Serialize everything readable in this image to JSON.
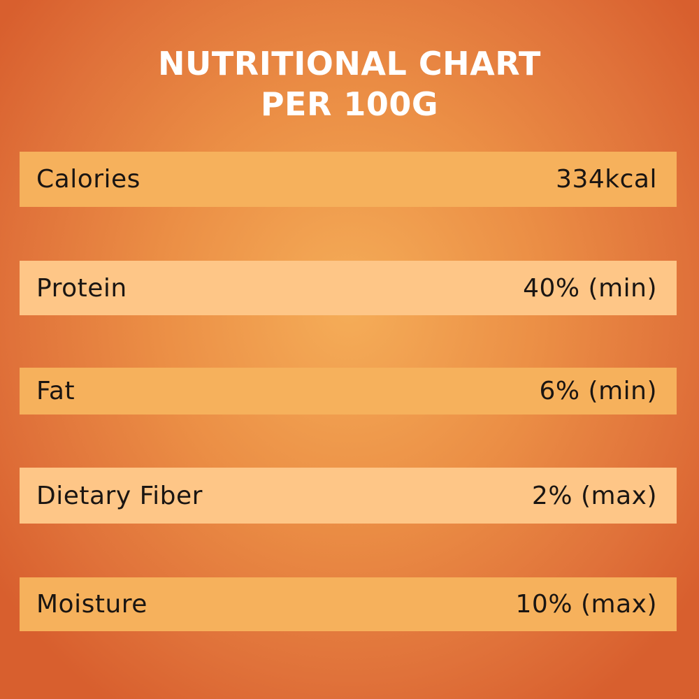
{
  "title": {
    "line1": "NUTRITIONAL CHART",
    "line2": "PER 100G"
  },
  "rows": [
    {
      "label": "Calories",
      "value": "334kcal"
    },
    {
      "label": "Protein",
      "value": "40% (min)"
    },
    {
      "label": "Fat",
      "value": "6% (min)"
    },
    {
      "label": "Dietary Fiber",
      "value": "2% (max)"
    },
    {
      "label": "Moisture",
      "value": "10% (max)"
    }
  ],
  "colors": {
    "row_dark": "#f6b15c",
    "row_light": "#fec687",
    "title_text": "#ffffff",
    "row_text": "#1a1512"
  }
}
